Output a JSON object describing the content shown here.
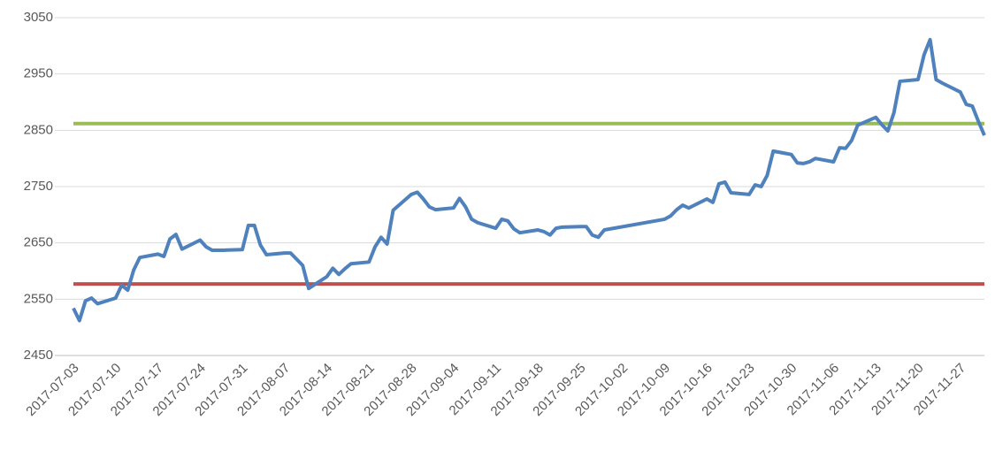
{
  "chart_data": {
    "type": "line",
    "x": [
      "2017-07-03",
      "2017-07-04",
      "2017-07-05",
      "2017-07-06",
      "2017-07-07",
      "2017-07-10",
      "2017-07-11",
      "2017-07-12",
      "2017-07-13",
      "2017-07-14",
      "2017-07-17",
      "2017-07-18",
      "2017-07-19",
      "2017-07-20",
      "2017-07-21",
      "2017-07-24",
      "2017-07-25",
      "2017-07-26",
      "2017-07-27",
      "2017-07-28",
      "2017-07-31",
      "2017-08-01",
      "2017-08-02",
      "2017-08-03",
      "2017-08-04",
      "2017-08-07",
      "2017-08-08",
      "2017-08-09",
      "2017-08-10",
      "2017-08-11",
      "2017-08-14",
      "2017-08-15",
      "2017-08-16",
      "2017-08-17",
      "2017-08-18",
      "2017-08-21",
      "2017-08-22",
      "2017-08-23",
      "2017-08-24",
      "2017-08-25",
      "2017-08-28",
      "2017-08-29",
      "2017-08-30",
      "2017-08-31",
      "2017-09-01",
      "2017-09-04",
      "2017-09-05",
      "2017-09-06",
      "2017-09-07",
      "2017-09-08",
      "2017-09-11",
      "2017-09-12",
      "2017-09-13",
      "2017-09-14",
      "2017-09-15",
      "2017-09-18",
      "2017-09-19",
      "2017-09-20",
      "2017-09-21",
      "2017-09-22",
      "2017-09-25",
      "2017-09-26",
      "2017-09-27",
      "2017-09-28",
      "2017-09-29",
      "2017-10-09",
      "2017-10-10",
      "2017-10-11",
      "2017-10-12",
      "2017-10-13",
      "2017-10-16",
      "2017-10-17",
      "2017-10-18",
      "2017-10-19",
      "2017-10-20",
      "2017-10-23",
      "2017-10-24",
      "2017-10-25",
      "2017-10-26",
      "2017-10-27",
      "2017-10-30",
      "2017-10-31",
      "2017-11-01",
      "2017-11-02",
      "2017-11-03",
      "2017-11-06",
      "2017-11-07",
      "2017-11-08",
      "2017-11-09",
      "2017-11-10",
      "2017-11-13",
      "2017-11-14",
      "2017-11-15",
      "2017-11-16",
      "2017-11-17",
      "2017-11-20",
      "2017-11-21",
      "2017-11-22",
      "2017-11-23",
      "2017-11-24",
      "2017-11-27",
      "2017-11-28",
      "2017-11-29",
      "2017-11-30",
      "2017-12-01"
    ],
    "values": [
      2534,
      2512,
      2547,
      2552,
      2542,
      2552,
      2575,
      2566,
      2602,
      2624,
      2630,
      2626,
      2657,
      2665,
      2639,
      2655,
      2643,
      2637,
      2637,
      2637,
      2638,
      2681,
      2681,
      2646,
      2629,
      2632,
      2632,
      2621,
      2610,
      2569,
      2590,
      2605,
      2594,
      2604,
      2613,
      2616,
      2643,
      2660,
      2648,
      2708,
      2736,
      2740,
      2728,
      2714,
      2709,
      2712,
      2729,
      2714,
      2692,
      2686,
      2676,
      2692,
      2689,
      2675,
      2668,
      2673,
      2670,
      2664,
      2676,
      2678,
      2679,
      2679,
      2664,
      2660,
      2673,
      2692,
      2698,
      2709,
      2717,
      2712,
      2728,
      2722,
      2755,
      2758,
      2739,
      2736,
      2753,
      2750,
      2770,
      2813,
      2807,
      2792,
      2791,
      2794,
      2800,
      2794,
      2819,
      2818,
      2832,
      2859,
      2873,
      2860,
      2849,
      2881,
      2937,
      2940,
      2984,
      3011,
      2940,
      2934,
      2918,
      2896,
      2893,
      2866,
      2841
    ],
    "color": "#4f81bd",
    "hlines": [
      {
        "value": 2862,
        "color": "#9bbb59"
      },
      {
        "value": 2577,
        "color": "#c0504d"
      }
    ],
    "xlim": [
      "2017-07-03",
      "2017-12-01"
    ],
    "xticks": [
      "2017-07-03",
      "2017-07-10",
      "2017-07-17",
      "2017-07-24",
      "2017-07-31",
      "2017-08-07",
      "2017-08-14",
      "2017-08-21",
      "2017-08-28",
      "2017-09-04",
      "2017-09-11",
      "2017-09-18",
      "2017-09-25",
      "2017-10-02",
      "2017-10-09",
      "2017-10-16",
      "2017-10-23",
      "2017-10-30",
      "2017-11-06",
      "2017-11-13",
      "2017-11-20",
      "2017-11-27"
    ],
    "ylim": [
      2450,
      3050
    ],
    "yticks": [
      2450,
      2550,
      2650,
      2750,
      2850,
      2950,
      3050
    ],
    "grid": true
  }
}
